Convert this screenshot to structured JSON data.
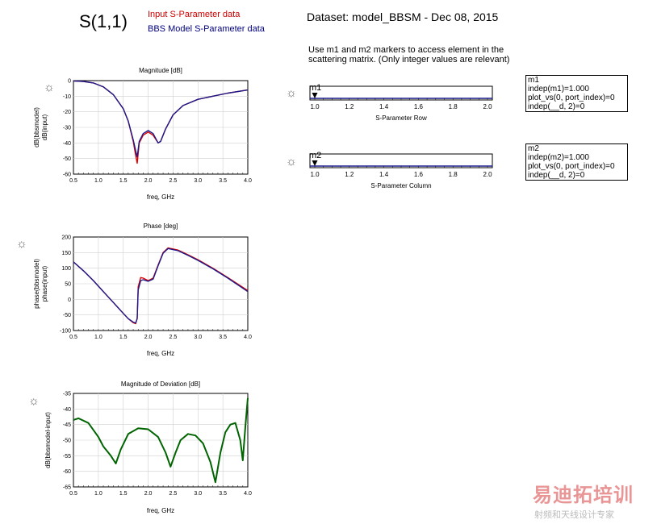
{
  "header": {
    "s_param": "S(1,1)",
    "legend_input": "Input S-Parameter data",
    "legend_model": "BBS Model S-Parameter data",
    "dataset": "Dataset: model_BBSM - Dec 08, 2015",
    "instruction_line1": "Use m1 and m2 markers to access element in the",
    "instruction_line2": "scattering matrix. (Only integer values are relevant)"
  },
  "colors": {
    "input": "#dd0000",
    "model": "#1a1a8c",
    "deviation": "#006400",
    "grid": "#d0d0d0"
  },
  "markers": [
    {
      "name": "m1",
      "axis_label": "S-Parameter Row",
      "value": 1.0,
      "box": [
        "m1",
        "indep(m1)=1.000",
        "plot_vs(0, port_index)=0",
        "indep(__d, 2)=0"
      ]
    },
    {
      "name": "m2",
      "axis_label": "S-Parameter Column",
      "value": 1.0,
      "box": [
        "m2",
        "indep(m2)=1.000",
        "plot_vs(0, port_index)=0",
        "indep(__d, 2)=0"
      ]
    }
  ],
  "watermark": {
    "brand": "易迪拓培训",
    "sub": "射频和天线设计专家"
  },
  "chart_data": [
    {
      "type": "line",
      "title": "Magnitude [dB]",
      "xlabel": "freq, GHz",
      "ylabels": [
        "dB(bbsmodel)",
        "dB(input)"
      ],
      "xlim": [
        0.5,
        4.0
      ],
      "ylim": [
        -60,
        0
      ],
      "xticks": [
        "0.5",
        "1.0",
        "1.5",
        "2.0",
        "2.5",
        "3.0",
        "3.5",
        "4.0"
      ],
      "yticks": [
        "0",
        "-10",
        "-20",
        "-30",
        "-40",
        "-50",
        "-60"
      ],
      "grid": true,
      "series": [
        {
          "name": "dB(input)",
          "color_key": "input",
          "x": [
            0.5,
            0.7,
            0.9,
            1.1,
            1.3,
            1.5,
            1.6,
            1.7,
            1.75,
            1.78,
            1.82,
            1.9,
            2.0,
            2.1,
            2.2,
            2.25,
            2.35,
            2.5,
            2.7,
            3.0,
            3.3,
            3.6,
            4.0
          ],
          "y": [
            -0.2,
            -0.5,
            -1.5,
            -4,
            -9,
            -18,
            -26,
            -39,
            -48,
            -53,
            -40,
            -35,
            -33,
            -35,
            -40,
            -39,
            -31,
            -22,
            -16,
            -12,
            -10,
            -8,
            -6
          ]
        },
        {
          "name": "dB(bbsmodel)",
          "color_key": "model",
          "x": [
            0.5,
            0.7,
            0.9,
            1.1,
            1.3,
            1.5,
            1.6,
            1.7,
            1.75,
            1.78,
            1.82,
            1.9,
            2.0,
            2.1,
            2.2,
            2.25,
            2.35,
            2.5,
            2.7,
            3.0,
            3.3,
            3.6,
            4.0
          ],
          "y": [
            -0.2,
            -0.5,
            -1.5,
            -4,
            -9,
            -18,
            -26,
            -38,
            -45,
            -49,
            -39,
            -34,
            -32,
            -34,
            -40,
            -39,
            -31,
            -22,
            -16,
            -12,
            -10,
            -8,
            -6
          ]
        }
      ]
    },
    {
      "type": "line",
      "title": "Phase [deg]",
      "xlabel": "freq, GHz",
      "ylabels": [
        "phase(bbsmodel)",
        "phase(input)"
      ],
      "xlim": [
        0.5,
        4.0
      ],
      "ylim": [
        -100,
        200
      ],
      "xticks": [
        "0.5",
        "1.0",
        "1.5",
        "2.0",
        "2.5",
        "3.0",
        "3.5",
        "4.0"
      ],
      "yticks": [
        "200",
        "150",
        "100",
        "50",
        "0",
        "-50",
        "-100"
      ],
      "grid": true,
      "series": [
        {
          "name": "phase(input)",
          "color_key": "input",
          "x": [
            0.5,
            0.7,
            0.9,
            1.1,
            1.3,
            1.5,
            1.6,
            1.7,
            1.75,
            1.78,
            1.8,
            1.85,
            1.9,
            2.0,
            2.1,
            2.2,
            2.3,
            2.4,
            2.6,
            2.8,
            3.0,
            3.3,
            3.6,
            4.0
          ],
          "y": [
            120,
            92,
            60,
            25,
            -10,
            -45,
            -62,
            -75,
            -78,
            -60,
            40,
            70,
            68,
            60,
            68,
            110,
            150,
            165,
            158,
            143,
            127,
            100,
            70,
            28
          ]
        },
        {
          "name": "phase(bbsmodel)",
          "color_key": "model",
          "x": [
            0.5,
            0.7,
            0.9,
            1.1,
            1.3,
            1.5,
            1.6,
            1.7,
            1.75,
            1.78,
            1.8,
            1.85,
            1.9,
            2.0,
            2.1,
            2.2,
            2.3,
            2.4,
            2.6,
            2.8,
            3.0,
            3.3,
            3.6,
            4.0
          ],
          "y": [
            120,
            92,
            60,
            25,
            -10,
            -45,
            -62,
            -73,
            -76,
            -62,
            30,
            60,
            63,
            58,
            65,
            108,
            148,
            163,
            156,
            141,
            125,
            98,
            68,
            25
          ]
        }
      ]
    },
    {
      "type": "line",
      "title": "Magnitude of Deviation [dB]",
      "xlabel": "freq, GHz",
      "ylabels": [
        "dB(bbsmodel-input)"
      ],
      "xlim": [
        0.5,
        4.0
      ],
      "ylim": [
        -65,
        -35
      ],
      "xticks": [
        "0.5",
        "1.0",
        "1.5",
        "2.0",
        "2.5",
        "3.0",
        "3.5",
        "4.0"
      ],
      "yticks": [
        "-35",
        "-40",
        "-45",
        "-50",
        "-55",
        "-60",
        "-65"
      ],
      "grid": true,
      "series": [
        {
          "name": "dB(bbsmodel-input)",
          "color_key": "deviation",
          "x": [
            0.5,
            0.6,
            0.8,
            1.0,
            1.1,
            1.25,
            1.35,
            1.45,
            1.6,
            1.8,
            2.0,
            2.2,
            2.35,
            2.45,
            2.55,
            2.65,
            2.8,
            2.95,
            3.1,
            3.25,
            3.35,
            3.45,
            3.55,
            3.65,
            3.75,
            3.85,
            3.9,
            3.95,
            4.0
          ],
          "y": [
            -43.5,
            -43,
            -44.5,
            -49,
            -52,
            -55,
            -57.5,
            -53,
            -48,
            -46.2,
            -46.5,
            -49,
            -54,
            -58.5,
            -54,
            -50,
            -48,
            -48.5,
            -51,
            -57,
            -63.5,
            -54,
            -47.5,
            -45,
            -44.5,
            -50,
            -56.5,
            -46,
            -36.5
          ]
        }
      ]
    }
  ]
}
